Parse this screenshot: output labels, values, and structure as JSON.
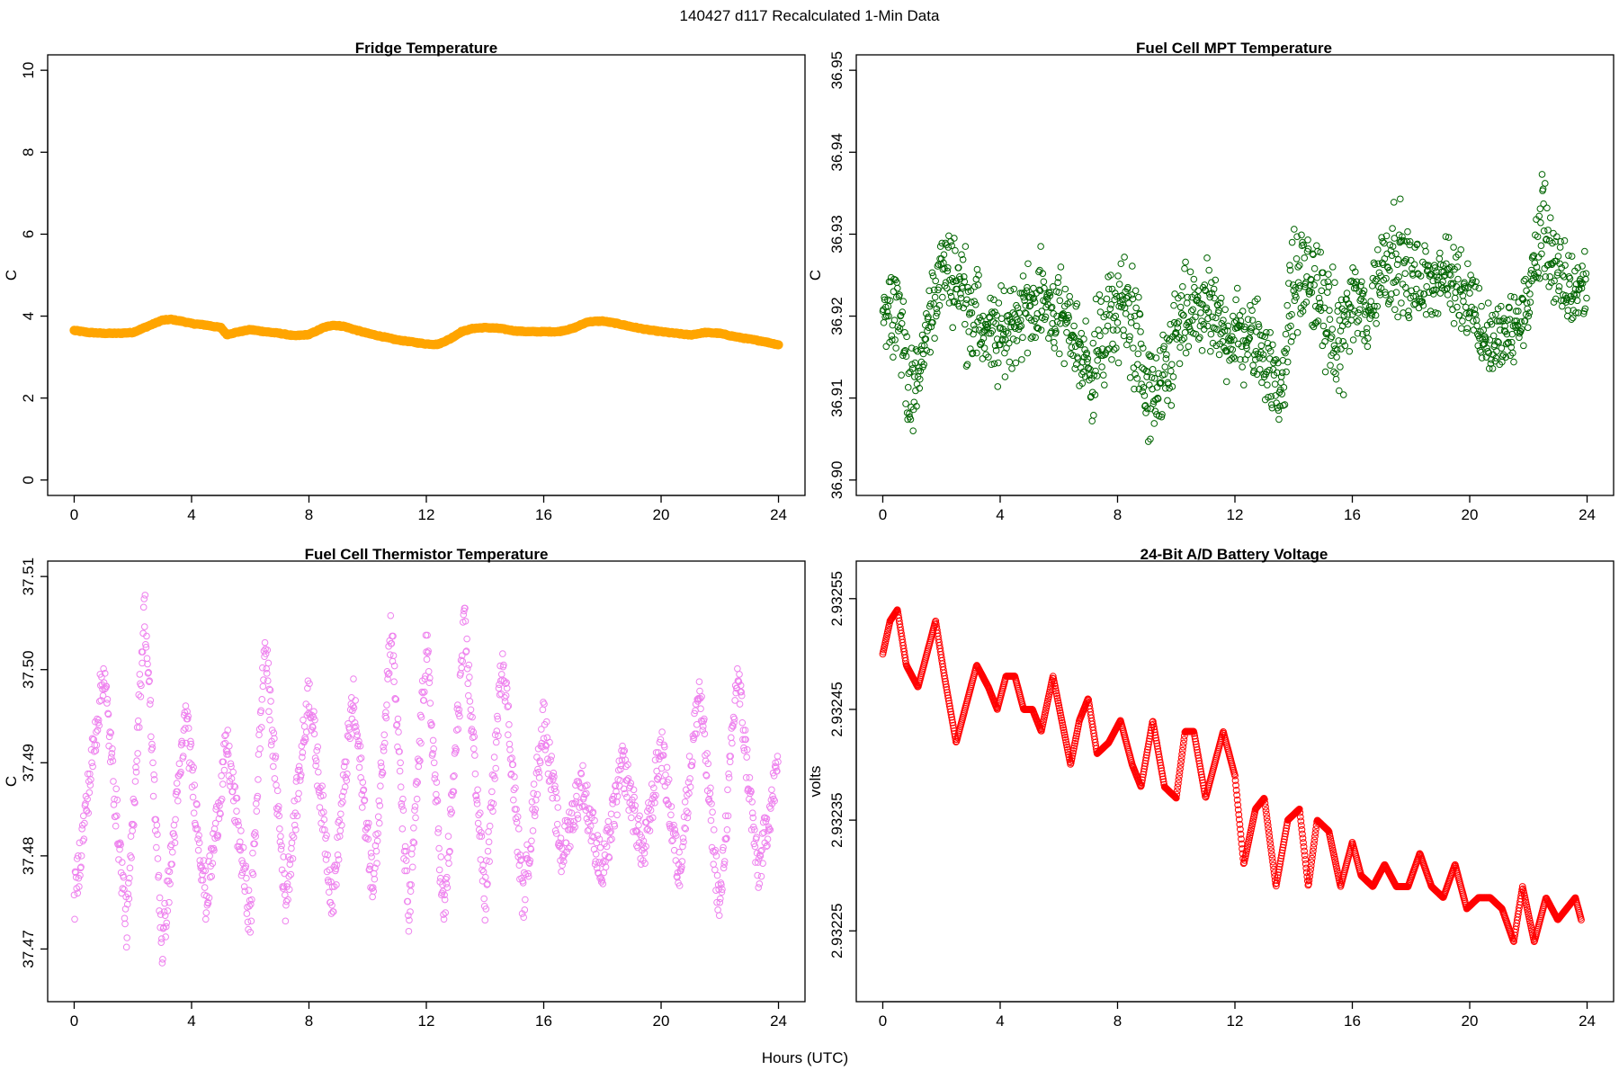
{
  "figure": {
    "title": "140427   d117   Recalculated 1-Min Data",
    "common_xlabel": "Hours (UTC)"
  },
  "chart_data": [
    {
      "id": "fridge",
      "type": "line",
      "title": "Fridge Temperature",
      "xlabel": "",
      "ylabel": "C",
      "color": "#FFA500",
      "marker": "filled-thick-line",
      "xlim": [
        0,
        24
      ],
      "ylim": [
        0,
        10
      ],
      "xticks": [
        0,
        4,
        8,
        12,
        16,
        20,
        24
      ],
      "yticks": [
        0,
        2,
        4,
        6,
        8,
        10
      ],
      "ytick_labels": [
        "0",
        "2",
        "4",
        "6",
        "8",
        "10"
      ],
      "x": [
        0,
        0.5,
        1,
        1.5,
        2,
        2.5,
        3,
        3.3,
        3.7,
        4,
        4.5,
        5,
        5.2,
        5.5,
        6,
        6.5,
        7,
        7.5,
        8,
        8.5,
        8.8,
        9.2,
        9.5,
        10,
        10.5,
        11,
        11.5,
        12,
        12.4,
        12.8,
        13.2,
        13.6,
        14,
        14.5,
        15,
        15.5,
        16,
        16.5,
        17,
        17.5,
        18,
        18.5,
        19,
        19.5,
        20,
        20.5,
        21,
        21.5,
        22,
        22.5,
        23,
        23.5,
        24
      ],
      "y": [
        3.65,
        3.6,
        3.58,
        3.58,
        3.6,
        3.75,
        3.9,
        3.92,
        3.87,
        3.82,
        3.78,
        3.72,
        3.55,
        3.6,
        3.67,
        3.62,
        3.58,
        3.52,
        3.55,
        3.72,
        3.78,
        3.75,
        3.68,
        3.58,
        3.5,
        3.42,
        3.37,
        3.32,
        3.31,
        3.44,
        3.62,
        3.7,
        3.72,
        3.7,
        3.64,
        3.62,
        3.62,
        3.62,
        3.7,
        3.86,
        3.88,
        3.82,
        3.74,
        3.67,
        3.62,
        3.58,
        3.54,
        3.6,
        3.58,
        3.5,
        3.44,
        3.38,
        3.3
      ]
    },
    {
      "id": "mpt",
      "type": "scatter",
      "title": "Fuel Cell MPT Temperature",
      "xlabel": "",
      "ylabel": "C",
      "color": "#006400",
      "marker": "open-circle",
      "xlim": [
        0,
        24
      ],
      "ylim": [
        36.9,
        36.95
      ],
      "xticks": [
        0,
        4,
        8,
        12,
        16,
        20,
        24
      ],
      "yticks": [
        36.9,
        36.91,
        36.92,
        36.93,
        36.94,
        36.95
      ],
      "ytick_labels": [
        "36.90",
        "36.91",
        "36.92",
        "36.93",
        "36.94",
        "36.95"
      ],
      "x": [
        0,
        0.5,
        1,
        1.5,
        2,
        2.5,
        3,
        3.5,
        4,
        4.5,
        5,
        5.5,
        6,
        6.5,
        7,
        7.5,
        8,
        8.5,
        9,
        9.5,
        10,
        10.5,
        11,
        11.5,
        12,
        12.5,
        13,
        13.5,
        14,
        14.5,
        15,
        15.5,
        16,
        16.5,
        17,
        17.5,
        18,
        18.5,
        19,
        19.5,
        20,
        20.5,
        21,
        21.5,
        22,
        22.5,
        23,
        23.5,
        24
      ],
      "y": [
        36.921,
        36.922,
        36.909,
        36.918,
        36.926,
        36.925,
        36.921,
        36.918,
        36.917,
        36.92,
        36.921,
        36.922,
        36.92,
        36.918,
        36.913,
        36.917,
        36.921,
        36.92,
        36.91,
        36.91,
        36.918,
        36.92,
        36.921,
        36.918,
        36.918,
        36.917,
        36.916,
        36.91,
        36.924,
        36.925,
        36.921,
        36.916,
        36.922,
        36.92,
        36.926,
        36.928,
        36.924,
        36.924,
        36.925,
        36.924,
        36.923,
        36.917,
        36.917,
        36.918,
        36.922,
        36.932,
        36.924,
        36.923,
        36.924
      ],
      "spread": [
        0.004,
        0.005,
        0.005,
        0.005,
        0.004,
        0.005,
        0.006,
        0.005,
        0.005,
        0.005,
        0.005,
        0.005,
        0.005,
        0.005,
        0.006,
        0.006,
        0.006,
        0.007,
        0.006,
        0.006,
        0.006,
        0.005,
        0.005,
        0.005,
        0.005,
        0.005,
        0.005,
        0.005,
        0.006,
        0.005,
        0.006,
        0.006,
        0.005,
        0.005,
        0.005,
        0.006,
        0.005,
        0.004,
        0.004,
        0.005,
        0.005,
        0.004,
        0.004,
        0.004,
        0.004,
        0.006,
        0.005,
        0.005,
        0.004
      ]
    },
    {
      "id": "thermistor",
      "type": "scatter",
      "title": "Fuel Cell Thermistor Temperature",
      "xlabel": "",
      "ylabel": "C",
      "color": "#EE82EE",
      "marker": "open-circle",
      "xlim": [
        0,
        24
      ],
      "ylim": [
        37.466,
        37.51
      ],
      "xticks": [
        0,
        4,
        8,
        12,
        16,
        20,
        24
      ],
      "yticks": [
        37.47,
        37.48,
        37.49,
        37.5,
        37.51
      ],
      "ytick_labels": [
        "37.47",
        "37.48",
        "37.49",
        "37.50",
        "37.51"
      ],
      "x": [
        0,
        1,
        1.8,
        2.4,
        3,
        3.8,
        4.5,
        5.2,
        6,
        6.5,
        7.2,
        8,
        8.8,
        9.5,
        10.2,
        10.8,
        11.4,
        12,
        12.6,
        13.3,
        14,
        14.6,
        15.3,
        16,
        16.6,
        17.3,
        18,
        18.7,
        19.4,
        20,
        20.6,
        21.3,
        22,
        22.6,
        23.3,
        24
      ],
      "y": [
        37.475,
        37.5,
        37.472,
        37.507,
        37.47,
        37.495,
        37.475,
        37.492,
        37.473,
        37.503,
        37.475,
        37.498,
        37.475,
        37.497,
        37.476,
        37.505,
        37.473,
        37.503,
        37.473,
        37.505,
        37.475,
        37.502,
        37.475,
        37.495,
        37.48,
        37.488,
        37.478,
        37.49,
        37.48,
        37.492,
        37.478,
        37.498,
        37.474,
        37.5,
        37.478,
        37.49
      ],
      "spread": 0.0025
    },
    {
      "id": "battery",
      "type": "line",
      "title": "24-Bit A/D Battery Voltage",
      "xlabel": "",
      "ylabel": "volts",
      "color": "#FF0000",
      "marker": "open-circle-dense",
      "xlim": [
        0,
        24
      ],
      "ylim": [
        2.9322,
        2.93257
      ],
      "xticks": [
        0,
        4,
        8,
        12,
        16,
        20,
        24
      ],
      "yticks": [
        2.93225,
        2.93235,
        2.93245,
        2.93255
      ],
      "ytick_labels": [
        "2.93225",
        "2.93235",
        "2.93245",
        "2.93255"
      ],
      "x": [
        0,
        0.25,
        0.5,
        0.8,
        1.2,
        1.5,
        1.8,
        2.1,
        2.5,
        2.9,
        3.2,
        3.6,
        3.9,
        4.2,
        4.5,
        4.8,
        5.1,
        5.4,
        5.8,
        6.1,
        6.4,
        6.7,
        7,
        7.3,
        7.7,
        8.1,
        8.5,
        8.8,
        9.2,
        9.6,
        10,
        10.3,
        10.6,
        11,
        11.3,
        11.6,
        12,
        12.3,
        12.7,
        13,
        13.4,
        13.8,
        14.2,
        14.5,
        14.8,
        15.2,
        15.6,
        16,
        16.3,
        16.7,
        17.1,
        17.5,
        17.9,
        18.3,
        18.7,
        19.1,
        19.5,
        19.9,
        20.3,
        20.7,
        21.1,
        21.5,
        21.8,
        22.2,
        22.6,
        23,
        23.3,
        23.6,
        23.8
      ],
      "y": [
        2.9325,
        2.93253,
        2.93254,
        2.93249,
        2.93247,
        2.9325,
        2.93253,
        2.93248,
        2.93242,
        2.93246,
        2.93249,
        2.93247,
        2.93245,
        2.93248,
        2.93248,
        2.93245,
        2.93245,
        2.93243,
        2.93248,
        2.93244,
        2.9324,
        2.93244,
        2.93246,
        2.93241,
        2.93242,
        2.93244,
        2.9324,
        2.93238,
        2.93244,
        2.93238,
        2.93237,
        2.93243,
        2.93243,
        2.93237,
        2.9324,
        2.93243,
        2.93239,
        2.93231,
        2.93236,
        2.93237,
        2.93229,
        2.93235,
        2.93236,
        2.93229,
        2.93235,
        2.93234,
        2.93229,
        2.93233,
        2.9323,
        2.93229,
        2.93231,
        2.93229,
        2.93229,
        2.93232,
        2.93229,
        2.93228,
        2.93231,
        2.93227,
        2.93228,
        2.93228,
        2.93227,
        2.93224,
        2.93229,
        2.93224,
        2.93228,
        2.93226,
        2.93227,
        2.93228,
        2.93226
      ]
    }
  ]
}
